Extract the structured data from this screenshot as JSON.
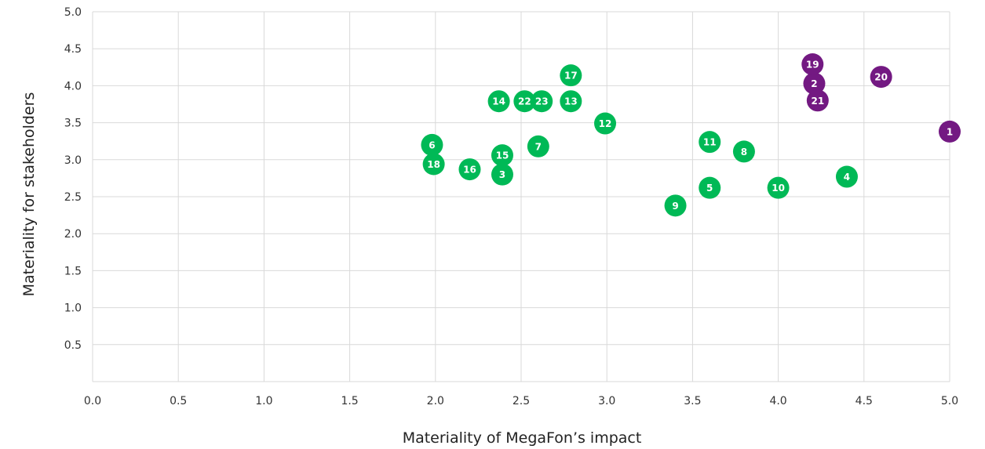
{
  "chart_data": {
    "type": "scatter",
    "title": "",
    "xlabel": "Materiality of MegaFon’s impact",
    "ylabel": "Materiality for stakeholders",
    "xlim": [
      0,
      5
    ],
    "ylim": [
      0,
      5
    ],
    "x_ticks": [
      "0.0",
      "0.5",
      "1.0",
      "1.5",
      "2.0",
      "2.5",
      "3.0",
      "3.5",
      "4.0",
      "4.5",
      "5.0"
    ],
    "y_ticks": [
      "0.5",
      "1.0",
      "1.5",
      "2.0",
      "2.5",
      "3.0",
      "3.5",
      "4.0",
      "4.5",
      "5.0"
    ],
    "grid": true,
    "colors": {
      "green": "#00b956",
      "purple": "#731982"
    },
    "points": [
      {
        "label": "1",
        "x": 5.0,
        "y": 3.38,
        "color": "purple"
      },
      {
        "label": "2",
        "x": 4.21,
        "y": 4.03,
        "color": "purple"
      },
      {
        "label": "3",
        "x": 2.39,
        "y": 2.8,
        "color": "green"
      },
      {
        "label": "4",
        "x": 4.4,
        "y": 2.77,
        "color": "green"
      },
      {
        "label": "5",
        "x": 3.6,
        "y": 2.62,
        "color": "green"
      },
      {
        "label": "6",
        "x": 1.98,
        "y": 3.2,
        "color": "green"
      },
      {
        "label": "7",
        "x": 2.6,
        "y": 3.18,
        "color": "green"
      },
      {
        "label": "8",
        "x": 3.8,
        "y": 3.11,
        "color": "green"
      },
      {
        "label": "9",
        "x": 3.4,
        "y": 2.38,
        "color": "green"
      },
      {
        "label": "10",
        "x": 4.0,
        "y": 2.62,
        "color": "green"
      },
      {
        "label": "11",
        "x": 3.6,
        "y": 3.24,
        "color": "green"
      },
      {
        "label": "12",
        "x": 2.99,
        "y": 3.49,
        "color": "green"
      },
      {
        "label": "13",
        "x": 2.79,
        "y": 3.79,
        "color": "green"
      },
      {
        "label": "14",
        "x": 2.37,
        "y": 3.79,
        "color": "green"
      },
      {
        "label": "15",
        "x": 2.39,
        "y": 3.06,
        "color": "green"
      },
      {
        "label": "16",
        "x": 2.2,
        "y": 2.87,
        "color": "green"
      },
      {
        "label": "17",
        "x": 2.79,
        "y": 4.14,
        "color": "green"
      },
      {
        "label": "18",
        "x": 1.99,
        "y": 2.94,
        "color": "green"
      },
      {
        "label": "19",
        "x": 4.2,
        "y": 4.29,
        "color": "purple"
      },
      {
        "label": "20",
        "x": 4.6,
        "y": 4.12,
        "color": "purple"
      },
      {
        "label": "21",
        "x": 4.23,
        "y": 3.8,
        "color": "purple"
      },
      {
        "label": "22",
        "x": 2.52,
        "y": 3.79,
        "color": "green"
      },
      {
        "label": "23",
        "x": 2.62,
        "y": 3.79,
        "color": "green"
      }
    ]
  }
}
